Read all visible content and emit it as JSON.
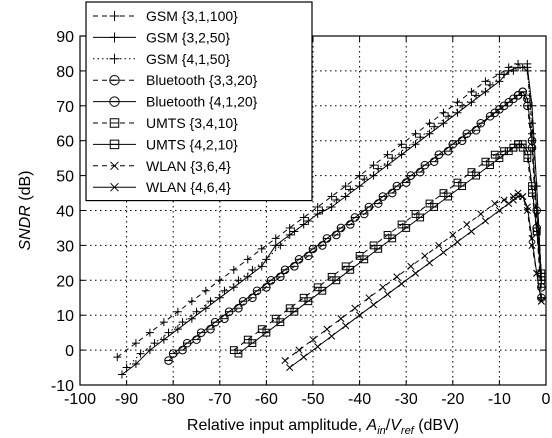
{
  "chart_data": {
    "type": "line",
    "xlabel": {
      "prefix": "Relative input amplitude, ",
      "var": "A",
      "var_sub": "in",
      "slash": "/",
      "var2": "V",
      "var2_sub": "ref",
      "suffix": " (dBV)"
    },
    "ylabel": {
      "var": "SNDR",
      "suffix": " (dB)"
    },
    "xlim": [
      -100,
      0
    ],
    "ylim": [
      -10,
      90
    ],
    "xticks": [
      -100,
      -90,
      -80,
      -70,
      -60,
      -50,
      -40,
      -30,
      -20,
      -10,
      0
    ],
    "yticks": [
      -10,
      0,
      10,
      20,
      30,
      40,
      50,
      60,
      70,
      80,
      90
    ],
    "grid": true,
    "legend_position": "top-left",
    "series": [
      {
        "name": "GSM {3,1,100}",
        "line": "dash",
        "marker": "plus",
        "x": [
          -92,
          -88,
          -85,
          -82,
          -79,
          -76,
          -73,
          -70,
          -67,
          -64,
          -61,
          -58,
          -55,
          -52,
          -49,
          -46,
          -43,
          -40,
          -37,
          -34,
          -31,
          -28,
          -25,
          -22,
          -19,
          -16,
          -13,
          -10,
          -8,
          -6,
          -4,
          -3,
          -2,
          -1
        ],
        "y": [
          -2,
          2,
          5,
          8,
          11,
          14,
          17,
          20,
          23,
          26,
          29,
          32,
          35,
          38,
          41,
          44,
          47,
          50,
          53,
          56,
          59,
          62,
          65,
          68,
          71,
          74,
          77,
          79,
          81,
          82,
          80,
          65,
          47,
          22
        ]
      },
      {
        "name": "GSM {3,2,50}",
        "line": "solid",
        "marker": "plus",
        "x": [
          -91,
          -88,
          -85,
          -82,
          -79,
          -76,
          -73,
          -70,
          -67,
          -64,
          -61,
          -58,
          -55,
          -52,
          -49,
          -46,
          -43,
          -40,
          -37,
          -34,
          -31,
          -28,
          -25,
          -22,
          -19,
          -16,
          -13,
          -10,
          -8,
          -6,
          -4,
          -3,
          -2,
          -1
        ],
        "y": [
          -7,
          -4,
          0,
          3,
          6,
          9,
          12,
          15,
          18,
          21,
          24,
          30,
          33,
          36,
          39,
          41,
          44,
          47,
          50,
          53,
          56,
          59,
          62,
          65,
          68,
          71,
          74,
          77,
          80,
          81,
          81,
          70,
          47,
          20
        ]
      },
      {
        "name": "GSM {4,1,50}",
        "line": "dot",
        "marker": "plus",
        "x": [
          -90,
          -87,
          -84,
          -81,
          -78,
          -75,
          -72,
          -69,
          -66,
          -63,
          -60,
          -57,
          -54,
          -51,
          -48,
          -45,
          -42,
          -39,
          -36,
          -33,
          -30,
          -27,
          -24,
          -21,
          -18,
          -15,
          -12,
          -9,
          -7,
          -5,
          -4,
          -3,
          -2,
          -1
        ],
        "y": [
          -5,
          -1,
          2,
          5,
          8,
          11,
          14,
          17,
          20,
          23,
          26,
          30,
          34,
          37,
          40,
          43,
          46,
          49,
          52,
          55,
          58,
          61,
          64,
          67,
          70,
          73,
          76,
          79,
          80,
          81,
          82,
          62,
          40,
          15
        ]
      },
      {
        "name": "Bluetooth {3,3,20}",
        "line": "dash",
        "marker": "circle-minus",
        "x": [
          -81,
          -78,
          -75,
          -72,
          -69,
          -66,
          -63,
          -60,
          -57,
          -54,
          -51,
          -48,
          -45,
          -42,
          -39,
          -36,
          -33,
          -30,
          -27,
          -24,
          -21,
          -18,
          -15,
          -12,
          -10,
          -8,
          -6,
          -5,
          -4,
          -3,
          -2,
          -1
        ],
        "y": [
          -3,
          0,
          3,
          6,
          9,
          12,
          15,
          18,
          21,
          24,
          27,
          30,
          33,
          36,
          39,
          42,
          45,
          48,
          51,
          54,
          57,
          60,
          63,
          67,
          69,
          71,
          73,
          74,
          70,
          58,
          35,
          15
        ]
      },
      {
        "name": "Bluetooth {4,1,20}",
        "line": "solid",
        "marker": "circle-minus",
        "x": [
          -80,
          -77,
          -74,
          -71,
          -68,
          -65,
          -62,
          -59,
          -56,
          -53,
          -50,
          -47,
          -44,
          -41,
          -38,
          -35,
          -32,
          -29,
          -26,
          -23,
          -20,
          -17,
          -14,
          -11,
          -9,
          -7,
          -6,
          -5,
          -4,
          -3,
          -2,
          -1
        ],
        "y": [
          -1,
          2,
          5,
          8,
          11,
          14,
          17,
          20,
          23,
          26,
          29,
          32,
          35,
          38,
          41,
          44,
          47,
          50,
          53,
          56,
          59,
          62,
          65,
          68,
          70,
          72,
          73,
          74,
          72,
          60,
          40,
          18
        ]
      },
      {
        "name": "UMTS {3,4,10}",
        "line": "dash",
        "marker": "square-minus",
        "x": [
          -67,
          -64,
          -61,
          -58,
          -55,
          -52,
          -49,
          -46,
          -43,
          -40,
          -37,
          -34,
          -31,
          -28,
          -25,
          -22,
          -19,
          -16,
          -13,
          -11,
          -9,
          -7,
          -6,
          -5,
          -4,
          -3,
          -2,
          -1
        ],
        "y": [
          0,
          3,
          6,
          9,
          12,
          15,
          18,
          21,
          24,
          27,
          30,
          33,
          36,
          39,
          42,
          45,
          48,
          51,
          54,
          56,
          57,
          58,
          59,
          58,
          55,
          45,
          34,
          20
        ]
      },
      {
        "name": "UMTS {4,2,10}",
        "line": "solid",
        "marker": "square-minus",
        "x": [
          -66,
          -63,
          -60,
          -57,
          -54,
          -51,
          -48,
          -45,
          -42,
          -39,
          -36,
          -33,
          -30,
          -27,
          -24,
          -21,
          -18,
          -15,
          -12,
          -10,
          -8,
          -7,
          -6,
          -5,
          -4,
          -3,
          -2,
          -1
        ],
        "y": [
          -1,
          2,
          5,
          8,
          11,
          14,
          17,
          20,
          23,
          26,
          29,
          32,
          35,
          38,
          41,
          44,
          47,
          50,
          53,
          55,
          57,
          58,
          59,
          59,
          57,
          47,
          34,
          22
        ]
      },
      {
        "name": "WLAN {3,6,4}",
        "line": "dash",
        "marker": "x",
        "x": [
          -56,
          -53,
          -50,
          -47,
          -44,
          -41,
          -38,
          -35,
          -32,
          -29,
          -26,
          -23,
          -20,
          -17,
          -14,
          -11,
          -9,
          -7,
          -6,
          -5,
          -4,
          -3,
          -2,
          -1
        ],
        "y": [
          -3,
          0,
          3,
          6,
          9,
          12,
          15,
          18,
          21,
          24,
          27,
          30,
          33,
          36,
          39,
          42,
          43,
          44,
          45,
          44,
          40,
          30,
          22,
          14
        ]
      },
      {
        "name": "WLAN {4,6,4}",
        "line": "solid",
        "marker": "x",
        "x": [
          -55,
          -52,
          -49,
          -46,
          -43,
          -40,
          -37,
          -34,
          -31,
          -28,
          -25,
          -22,
          -19,
          -16,
          -13,
          -10,
          -8,
          -7,
          -6,
          -5,
          -4,
          -3,
          -2,
          -1
        ],
        "y": [
          -5,
          -2,
          1,
          4,
          7,
          10,
          13,
          16,
          19,
          22,
          25,
          28,
          31,
          34,
          37,
          40,
          42,
          43,
          44,
          44,
          41,
          32,
          22,
          14
        ]
      }
    ]
  }
}
